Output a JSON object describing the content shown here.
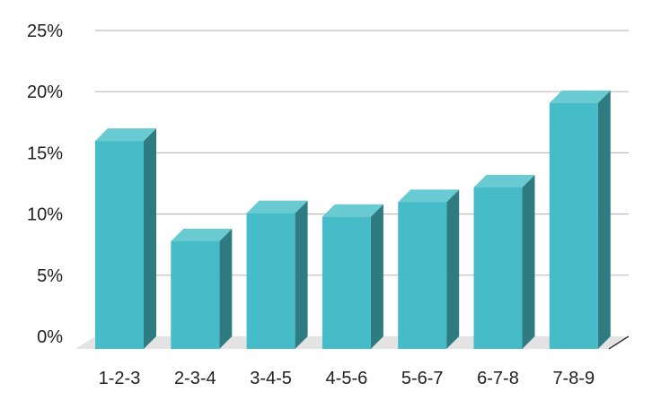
{
  "chart_data": {
    "type": "bar",
    "categories": [
      "1-2-3",
      "2-3-4",
      "3-4-5",
      "4-5-6",
      "5-6-7",
      "6-7-8",
      "7-8-9"
    ],
    "values": [
      17,
      8.8,
      11.1,
      10.8,
      12,
      13.2,
      20.1
    ],
    "y_ticks": [
      "0%",
      "5%",
      "10%",
      "15%",
      "20%",
      "25%"
    ],
    "ylim": [
      0,
      25
    ],
    "grid": true,
    "legend": "none",
    "colors": {
      "bar_front": "#45BCC7",
      "bar_top": "#6ACAD2",
      "bar_side": "#2E7C82",
      "grid": "#BDBDBD",
      "floor": "#E3E3E3",
      "axis_edge": "#1a1a1a"
    }
  }
}
